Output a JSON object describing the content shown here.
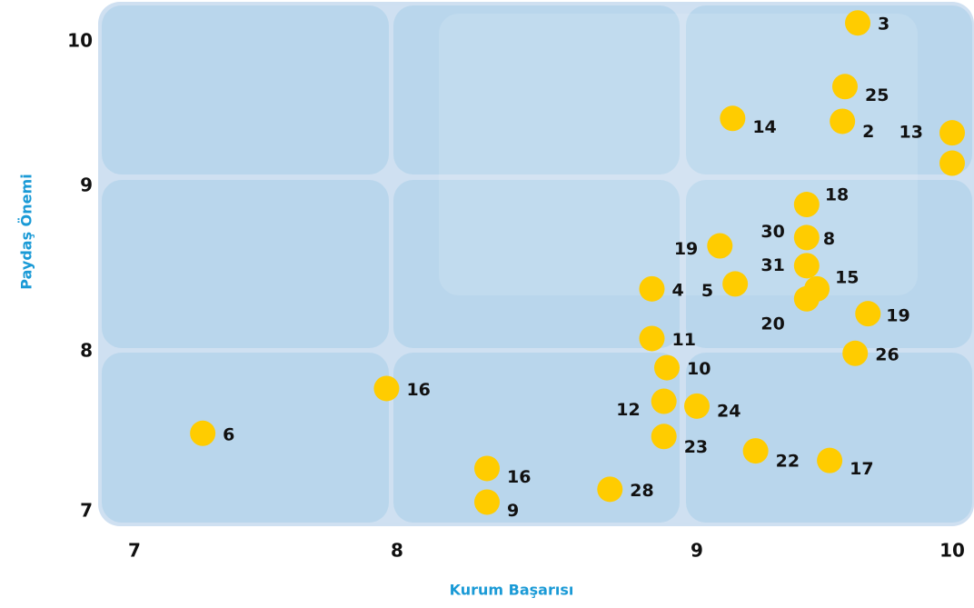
{
  "chart_data": {
    "type": "scatter",
    "x_label": "Kurum Başarısı",
    "y_label": "Paydaş Önemi",
    "color": "#ffcc00",
    "xlim": [
      6.88,
      10.08
    ],
    "xticks": [
      7,
      8,
      9,
      10
    ],
    "ylim": [
      6.93,
      10.25
    ],
    "yticks": [
      7,
      8,
      9,
      10
    ],
    "x": [
      7.26,
      7.96,
      8.3,
      8.3,
      8.71,
      8.89,
      8.89,
      9.0,
      8.9,
      8.85,
      9.23,
      9.52,
      8.85,
      9.15,
      9.09,
      9.43,
      9.43,
      9.43,
      9.47,
      9.43,
      9.67,
      9.62,
      9.14,
      9.57,
      9.58,
      9.63,
      10.0,
      10.0
    ],
    "values": [
      7.49,
      7.77,
      7.27,
      7.06,
      7.14,
      7.47,
      7.69,
      7.66,
      7.9,
      8.08,
      7.38,
      7.32,
      8.38,
      8.41,
      8.64,
      8.89,
      8.69,
      8.52,
      8.38,
      8.32,
      8.23,
      7.99,
      9.47,
      9.45,
      9.69,
      10.13,
      9.37,
      9.16
    ],
    "labels": [
      "6",
      "16",
      "16",
      "9",
      "28",
      "23",
      "12",
      "24",
      "10",
      "11",
      "22",
      "17",
      "4",
      "5",
      "19",
      "18",
      "30",
      "31",
      "15",
      "20",
      "19",
      "26",
      "14",
      "2",
      "25",
      "3",
      "13",
      null
    ],
    "extra_labels": [
      {
        "label": "8",
        "index": 16
      }
    ]
  }
}
